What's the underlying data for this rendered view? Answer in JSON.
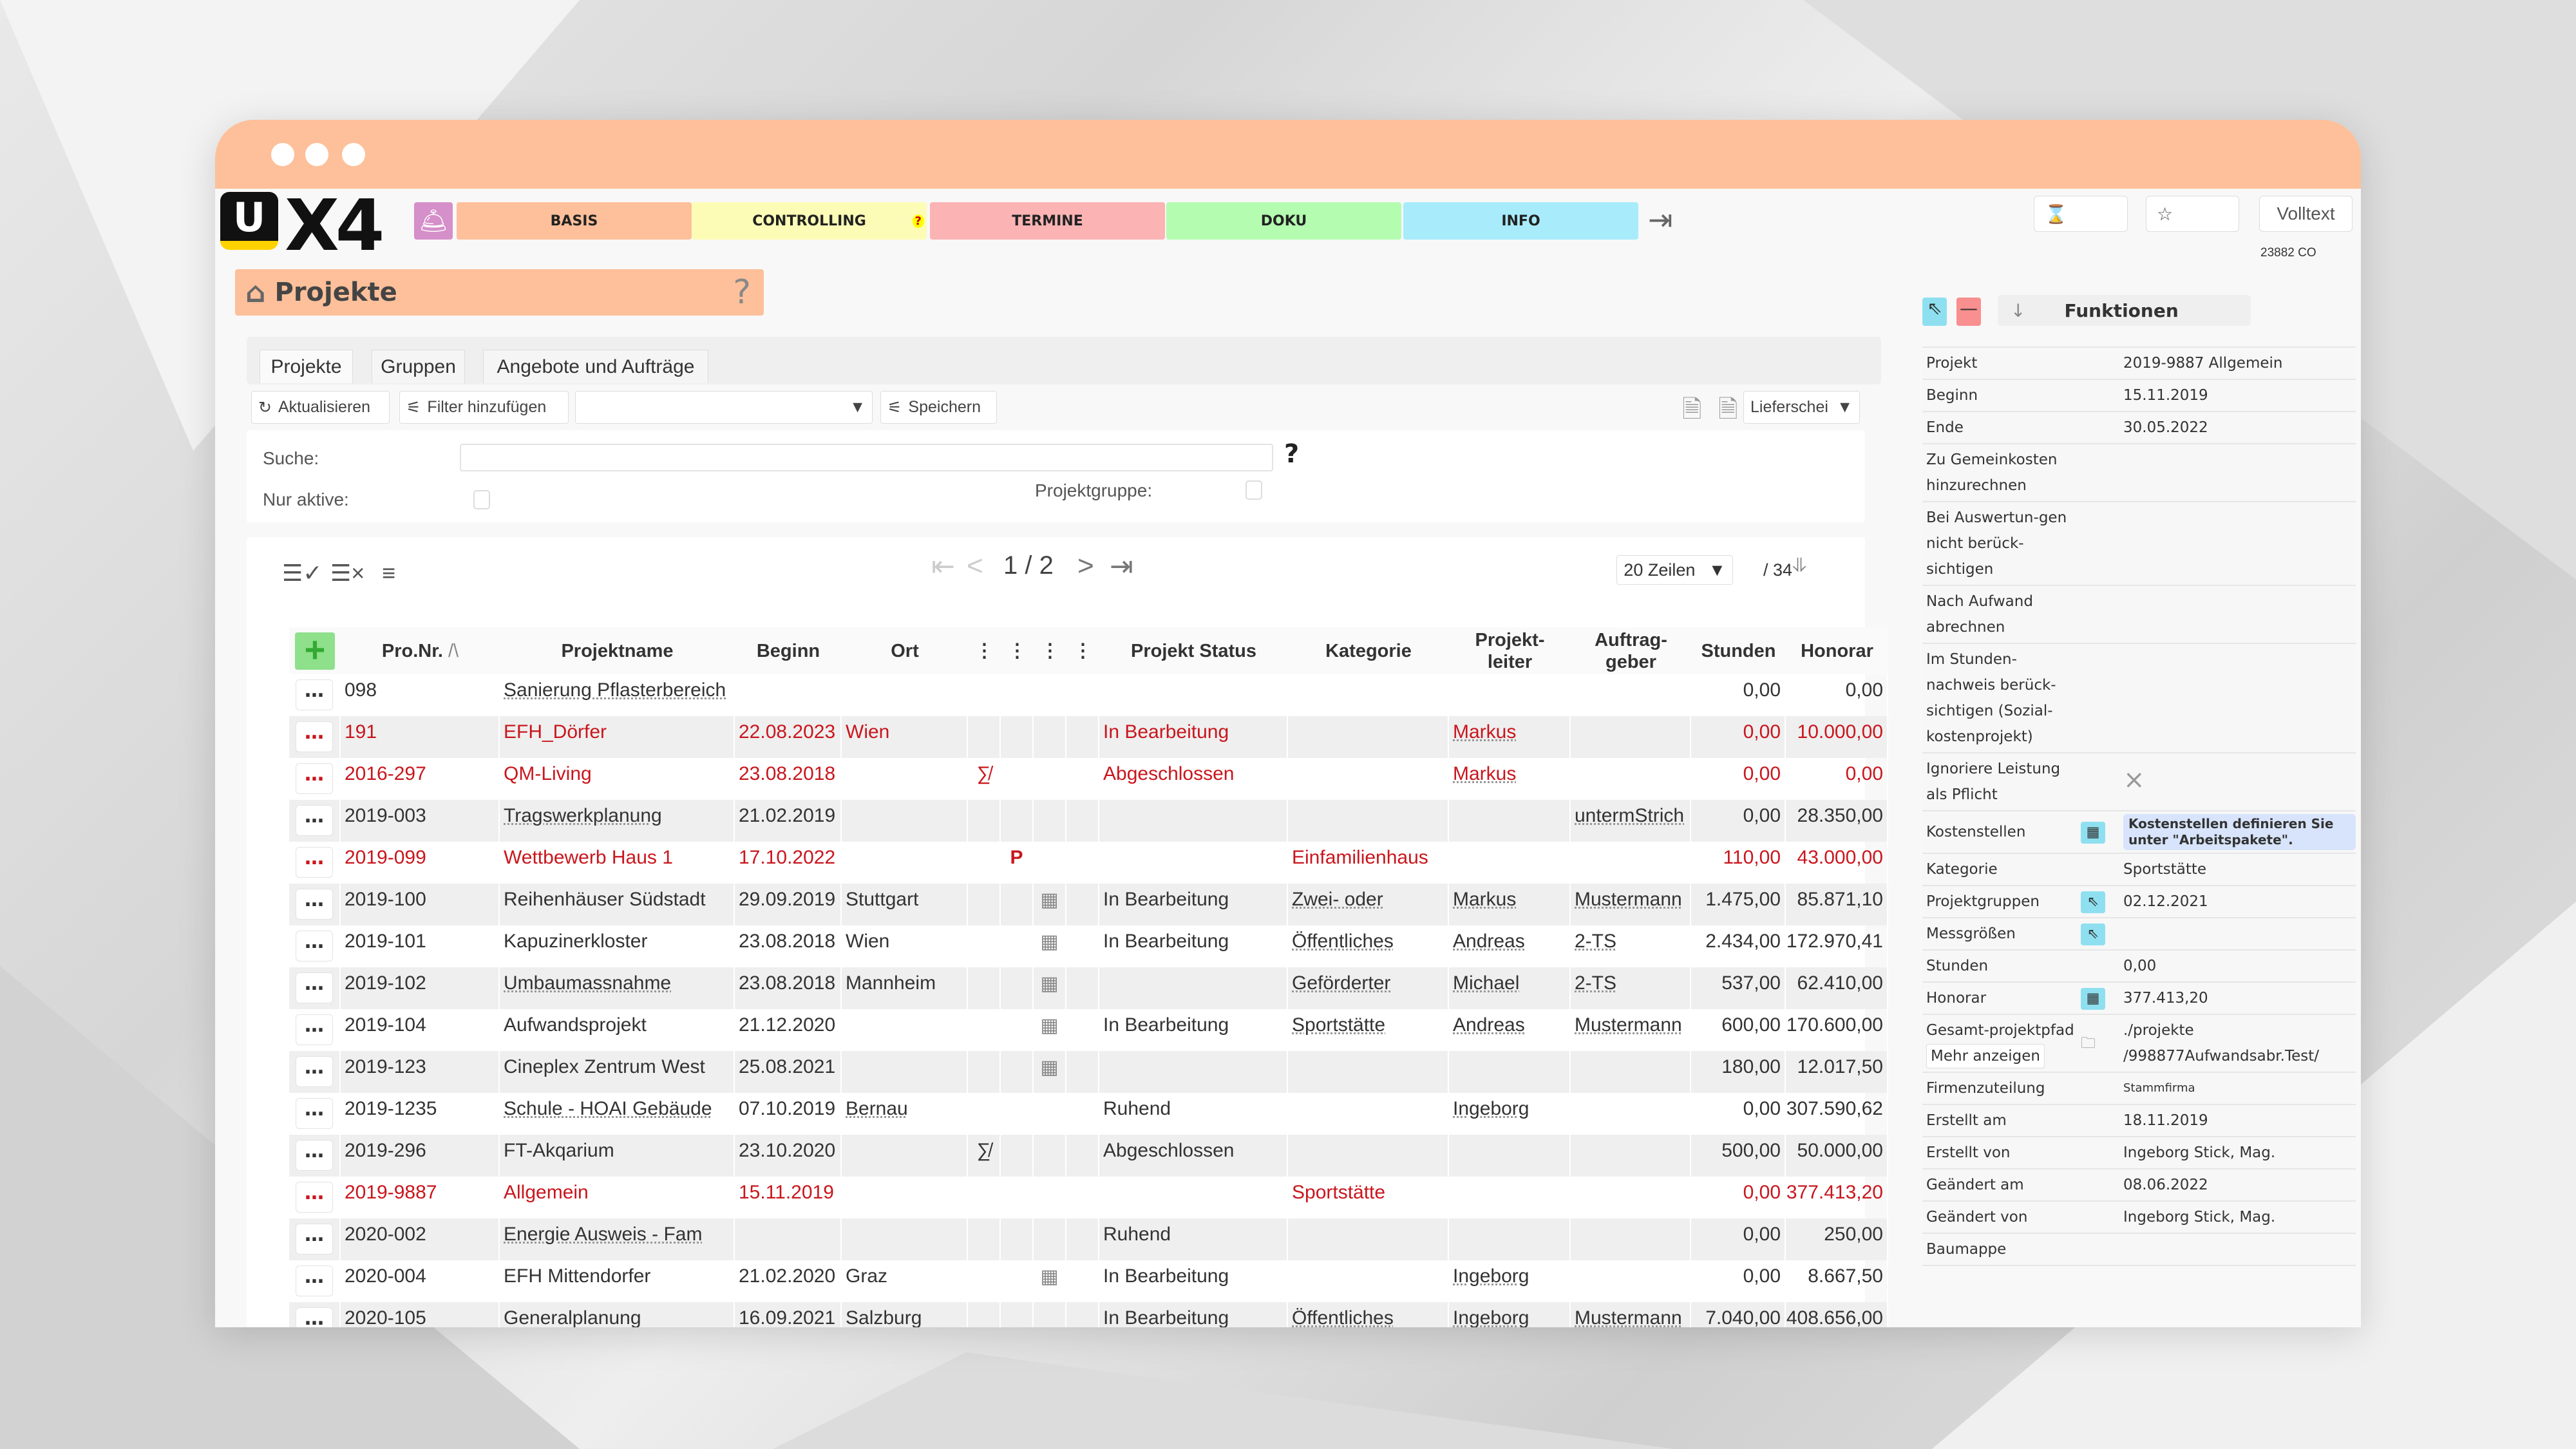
{
  "app": {
    "window_dots": 3,
    "account_code": "23882 CO",
    "volltext_label": "Volltext"
  },
  "logo": {
    "u": "U",
    "x4": "X4"
  },
  "nav": [
    {
      "label": "BASIS",
      "color": "#fdc09a"
    },
    {
      "label": "CONTROLLING",
      "color": "#fdfcb6",
      "badge": "?"
    },
    {
      "label": "TERMINE",
      "color": "#fbb3b3"
    },
    {
      "label": "DOKU",
      "color": "#b4fcb0"
    },
    {
      "label": "INFO",
      "color": "#a8ecfb"
    }
  ],
  "page": {
    "title": "Projekte",
    "help": "?"
  },
  "tabs": [
    {
      "label": "Projekte",
      "active": true
    },
    {
      "label": "Gruppen"
    },
    {
      "label": "Angebote und Aufträge"
    }
  ],
  "toolbar": {
    "refresh": "Aktualisieren",
    "add_filter": "Filter hinzufügen",
    "filter_select": "",
    "save": "Speichern",
    "export_select": "Lieferschein"
  },
  "search": {
    "label": "Suche:",
    "value": "",
    "help": "?",
    "only_active_label": "Nur aktive:",
    "only_active": false,
    "group_label": "Projektgruppe:",
    "group_checked": false
  },
  "pagination": {
    "current": "1 / 2",
    "rows_per_page": "20 Zeilen",
    "total": "/ 34"
  },
  "table": {
    "headers": [
      "Pro.Nr.",
      "Projektname",
      "Beginn",
      "Ort",
      "⋮",
      "⋮",
      "⋮",
      "⋮",
      "Projekt Status",
      "Kategorie",
      "Projekt-\nleiter",
      "Auftrag-\ngeber",
      "Stunden",
      "Honorar"
    ],
    "sort_indicator": "/\\",
    "rows": [
      {
        "nr": "098",
        "name": "Sanierung Pflasterbereich",
        "beginn": "",
        "ort": "",
        "i1": "",
        "i2": "",
        "i3": "",
        "status": "",
        "kategorie": "",
        "leiter": "",
        "auftraggeber": "",
        "stunden": "0,00",
        "honorar": "0,00",
        "red": false,
        "nameLink": true
      },
      {
        "nr": "191",
        "name": "EFH_Dörfer",
        "beginn": "22.08.2023",
        "ort": "Wien",
        "i1": "",
        "i2": "",
        "i3": "",
        "status": "In Bearbeitung",
        "kategorie": "",
        "leiter": "Markus",
        "auftraggeber": "",
        "stunden": "0,00",
        "honorar": "10.000,00",
        "red": true
      },
      {
        "nr": "2016-297",
        "name": "QM-Living",
        "beginn": "23.08.2018",
        "ort": "",
        "i1": "∑̸",
        "i2": "",
        "i3": "",
        "status": "Abgeschlossen",
        "kategorie": "",
        "leiter": "Markus",
        "auftraggeber": "",
        "stunden": "0,00",
        "honorar": "0,00",
        "red": true
      },
      {
        "nr": "2019-003",
        "name": "Tragswerkplanung",
        "beginn": "21.02.2019",
        "ort": "",
        "i1": "",
        "i2": "",
        "i3": "",
        "status": "",
        "kategorie": "",
        "leiter": "",
        "auftraggeber": "untermStrich",
        "stunden": "0,00",
        "honorar": "28.350,00",
        "red": false,
        "nameLink": true
      },
      {
        "nr": "2019-099",
        "name": "Wettbewerb Haus 1",
        "beginn": "17.10.2022",
        "ort": "",
        "i1": "",
        "i2": "P",
        "i3": "",
        "status": "",
        "kategorie": "Einfamilienhaus",
        "leiter": "",
        "auftraggeber": "",
        "stunden": "110,00",
        "honorar": "43.000,00",
        "red": true
      },
      {
        "nr": "2019-100",
        "name": "Reihenhäuser Südstadt",
        "beginn": "29.09.2019",
        "ort": "Stuttgart",
        "i1": "",
        "i2": "",
        "i3": "▦",
        "status": "In Bearbeitung",
        "kategorie": "Zwei- oder",
        "leiter": "Markus",
        "auftraggeber": "Mustermann",
        "stunden": "1.475,00",
        "honorar": "85.871,10",
        "red": false
      },
      {
        "nr": "2019-101",
        "name": "Kapuzinerkloster",
        "beginn": "23.08.2018",
        "ort": "Wien",
        "i1": "",
        "i2": "",
        "i3": "▦",
        "status": "In Bearbeitung",
        "kategorie": "Öffentliches",
        "leiter": "Andreas",
        "auftraggeber": "2-TS",
        "stunden": "2.434,00",
        "honorar": "172.970,41",
        "red": false
      },
      {
        "nr": "2019-102",
        "name": "Umbaumassnahme",
        "beginn": "23.08.2018",
        "ort": "Mannheim",
        "i1": "",
        "i2": "",
        "i3": "▦",
        "status": "",
        "kategorie": "Geförderter",
        "leiter": "Michael",
        "auftraggeber": "2-TS",
        "stunden": "537,00",
        "honorar": "62.410,00",
        "red": false,
        "nameLink": true
      },
      {
        "nr": "2019-104",
        "name": "Aufwandsprojekt",
        "beginn": "21.12.2020",
        "ort": "",
        "i1": "",
        "i2": "",
        "i3": "▦",
        "status": "In Bearbeitung",
        "kategorie": "Sportstätte",
        "leiter": "Andreas",
        "auftraggeber": "Mustermann",
        "stunden": "600,00",
        "honorar": "170.600,00",
        "red": false
      },
      {
        "nr": "2019-123",
        "name": "Cineplex Zentrum West",
        "beginn": "25.08.2021",
        "ort": "",
        "i1": "",
        "i2": "",
        "i3": "▦",
        "status": "",
        "kategorie": "",
        "leiter": "",
        "auftraggeber": "",
        "stunden": "180,00",
        "honorar": "12.017,50",
        "red": false
      },
      {
        "nr": "2019-1235",
        "name": "Schule - HOAI Gebäude",
        "beginn": "07.10.2019",
        "ort": "Bernau",
        "i1": "",
        "i2": "",
        "i3": "",
        "status": "Ruhend",
        "kategorie": "",
        "leiter": "Ingeborg",
        "auftraggeber": "",
        "stunden": "0,00",
        "honorar": "307.590,62",
        "red": false,
        "nameLink": true
      },
      {
        "nr": "2019-296",
        "name": "FT-Akqarium",
        "beginn": "23.10.2020",
        "ort": "",
        "i1": "∑̸",
        "i2": "",
        "i3": "",
        "status": "Abgeschlossen",
        "kategorie": "",
        "leiter": "",
        "auftraggeber": "",
        "stunden": "500,00",
        "honorar": "50.000,00",
        "red": false
      },
      {
        "nr": "2019-9887",
        "name": "Allgemein",
        "beginn": "15.11.2019",
        "ort": "",
        "i1": "",
        "i2": "",
        "i3": "",
        "status": "",
        "kategorie": "Sportstätte",
        "leiter": "",
        "auftraggeber": "",
        "stunden": "0,00",
        "honorar": "377.413,20",
        "red": true
      },
      {
        "nr": "2020-002",
        "name": "Energie Ausweis - Fam",
        "beginn": "",
        "ort": "",
        "i1": "",
        "i2": "",
        "i3": "",
        "status": "Ruhend",
        "kategorie": "",
        "leiter": "",
        "auftraggeber": "",
        "stunden": "0,00",
        "honorar": "250,00",
        "red": false,
        "nameLink": true
      },
      {
        "nr": "2020-004",
        "name": "EFH Mittendorfer",
        "beginn": "21.02.2020",
        "ort": "Graz",
        "i1": "",
        "i2": "",
        "i3": "▦",
        "status": "In Bearbeitung",
        "kategorie": "",
        "leiter": "Ingeborg",
        "auftraggeber": "",
        "stunden": "0,00",
        "honorar": "8.667,50",
        "red": false
      },
      {
        "nr": "2020-105",
        "name": "Generalplanung",
        "beginn": "16.09.2021",
        "ort": "Salzburg",
        "i1": "",
        "i2": "",
        "i3": "",
        "status": "In Bearbeitung",
        "kategorie": "Öffentliches",
        "leiter": "Ingeborg",
        "auftraggeber": "Mustermann",
        "stunden": "7.040,00",
        "honorar": "408.656,00",
        "red": false
      }
    ]
  },
  "sidebar": {
    "functions_label": "Funktionen",
    "rows": [
      {
        "label": "Projekt",
        "value": "2019-9887 Allgemein"
      },
      {
        "label": "Beginn",
        "value": "15.11.2019"
      },
      {
        "label": "Ende",
        "value": "30.05.2022"
      },
      {
        "label": "Zu Gemeinkosten hinzurechnen",
        "value": ""
      },
      {
        "label": "Bei Auswertun-gen nicht berück-sichtigen",
        "value": ""
      },
      {
        "label": "Nach Aufwand abrechnen",
        "value": ""
      },
      {
        "label": "Im Stunden-nachweis berück-sichtigen (Sozial-kostenprojekt)",
        "value": ""
      },
      {
        "label": "Ignoriere Leistung als Pflicht",
        "value": "",
        "mark": "×"
      },
      {
        "label": "Kostenstellen",
        "value": "",
        "icon": "grid",
        "info": "Kostenstellen definieren Sie unter \"Arbeitspakete\"."
      },
      {
        "label": "Kategorie",
        "value": "Sportstätte"
      },
      {
        "label": "Projektgruppen",
        "value": "02.12.2021",
        "icon": "pointer"
      },
      {
        "label": "Messgrößen",
        "value": "",
        "icon": "pointer"
      },
      {
        "label": "Stunden",
        "value": "0,00"
      },
      {
        "label": "Honorar",
        "value": "377.413,20",
        "icon": "grid"
      },
      {
        "label": "Gesamt-projektpfad",
        "value": "./projekte /998877Aufwandsabr.Test/",
        "icon": "folder",
        "button": "Mehr anzeigen"
      },
      {
        "label": "Firmenzuteilung",
        "value": "Stammfirma",
        "small": true
      },
      {
        "label": "Erstellt am",
        "value": "18.11.2019"
      },
      {
        "label": "Erstellt von",
        "value": "Ingeborg Stick, Mag."
      },
      {
        "label": "Geändert am",
        "value": "08.06.2022"
      },
      {
        "label": "Geändert von",
        "value": "Ingeborg Stick, Mag."
      },
      {
        "label": "Baumappe",
        "value": ""
      }
    ]
  }
}
